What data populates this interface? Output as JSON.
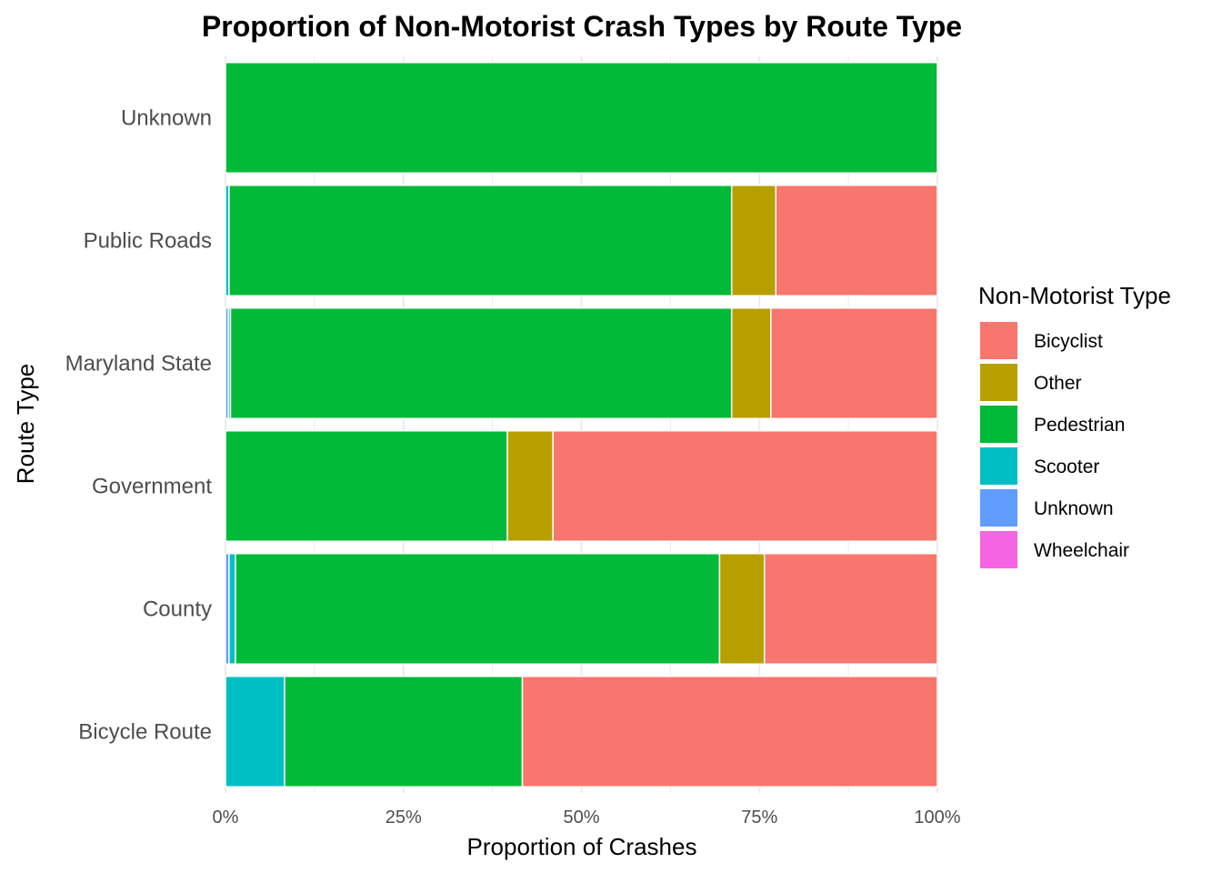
{
  "chart_data": {
    "type": "bar",
    "orientation": "horizontal",
    "stacked": true,
    "normalized": true,
    "title": "Proportion of Non-Motorist Crash Types by Route Type",
    "xlabel": "Proportion of Crashes",
    "ylabel": "Route Type",
    "xlim": [
      0,
      1
    ],
    "x_ticks": [
      0,
      0.25,
      0.5,
      0.75,
      1.0
    ],
    "x_tick_labels": [
      "0%",
      "25%",
      "50%",
      "75%",
      "100%"
    ],
    "grid": true,
    "legend": {
      "title": "Non-Motorist Type",
      "position": "right"
    },
    "categories": [
      "Unknown",
      "Public Roads",
      "Maryland State",
      "Government",
      "County",
      "Bicycle Route"
    ],
    "stack_order": [
      "Wheelchair",
      "Unknown",
      "Scooter",
      "Pedestrian",
      "Other",
      "Bicyclist"
    ],
    "series": [
      {
        "name": "Bicyclist",
        "color": "#F8766D",
        "values": [
          0.0,
          0.227,
          0.234,
          0.54,
          0.243,
          0.583
        ]
      },
      {
        "name": "Other",
        "color": "#B79F00",
        "values": [
          0.0,
          0.062,
          0.055,
          0.064,
          0.063,
          0.0
        ]
      },
      {
        "name": "Pedestrian",
        "color": "#00BA38",
        "values": [
          1.0,
          0.706,
          0.704,
          0.396,
          0.68,
          0.334
        ]
      },
      {
        "name": "Scooter",
        "color": "#00BFC4",
        "values": [
          0.0,
          0.005,
          0.003,
          0.0,
          0.009,
          0.083
        ]
      },
      {
        "name": "Unknown",
        "color": "#619CFF",
        "values": [
          0.0,
          0.0,
          0.004,
          0.0,
          0.005,
          0.0
        ]
      },
      {
        "name": "Wheelchair",
        "color": "#F564E3",
        "values": [
          0.0,
          0.0,
          0.0,
          0.0,
          0.0,
          0.0
        ]
      }
    ]
  }
}
